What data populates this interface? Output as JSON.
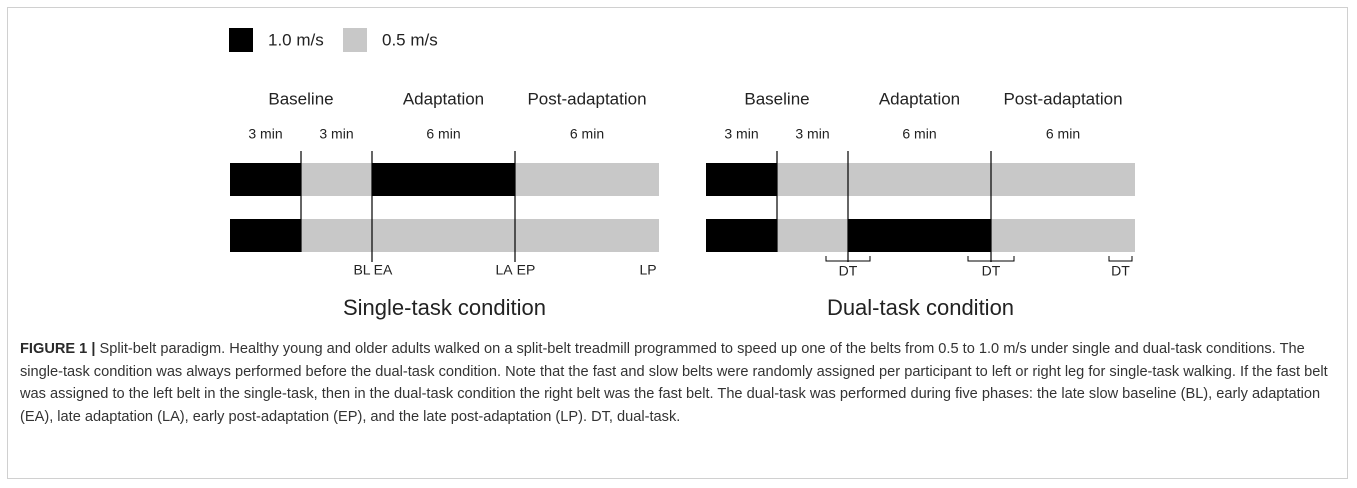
{
  "legend": [
    {
      "label": "1.0 m/s",
      "color": "#000000"
    },
    {
      "label": "0.5 m/s",
      "color": "#c8c8c8"
    }
  ],
  "panels": [
    {
      "title": "Single-task condition",
      "phases": [
        "Baseline",
        "Adaptation",
        "Post-adaptation"
      ],
      "durations": [
        "3 min",
        "3 min",
        "6 min",
        "6 min"
      ],
      "top_belt": [
        "#000000",
        "#c8c8c8",
        "#000000",
        "#c8c8c8"
      ],
      "bottom_belt": [
        "#000000",
        "#c8c8c8",
        "#c8c8c8",
        "#c8c8c8"
      ],
      "markers": [
        "BL",
        "EA",
        "LA",
        "EP",
        "LP"
      ]
    },
    {
      "title": "Dual-task condition",
      "phases": [
        "Baseline",
        "Adaptation",
        "Post-adaptation"
      ],
      "durations": [
        "3 min",
        "3 min",
        "6 min",
        "6 min"
      ],
      "top_belt": [
        "#000000",
        "#c8c8c8",
        "#c8c8c8",
        "#c8c8c8"
      ],
      "bottom_belt": [
        "#000000",
        "#c8c8c8",
        "#000000",
        "#c8c8c8"
      ],
      "markers": [
        "DT",
        "DT",
        "DT"
      ]
    }
  ],
  "caption": {
    "label": "FIGURE 1 |",
    "text": " Split-belt paradigm. Healthy young and older adults walked on a split-belt treadmill programmed to speed up one of the belts from 0.5 to 1.0 m/s under single and dual-task conditions. The single-task condition was always performed before the dual-task condition. Note that the fast and slow belts were randomly assigned per participant to left or right leg for single-task walking. If the fast belt was assigned to the left belt in the single-task, then in the dual-task condition the right belt was the fast belt. The dual-task was performed during five phases: the late slow baseline (BL), early adaptation (EA), late adaptation (LA), early post-adaptation (EP), and the late post-adaptation (LP). DT, dual-task."
  }
}
